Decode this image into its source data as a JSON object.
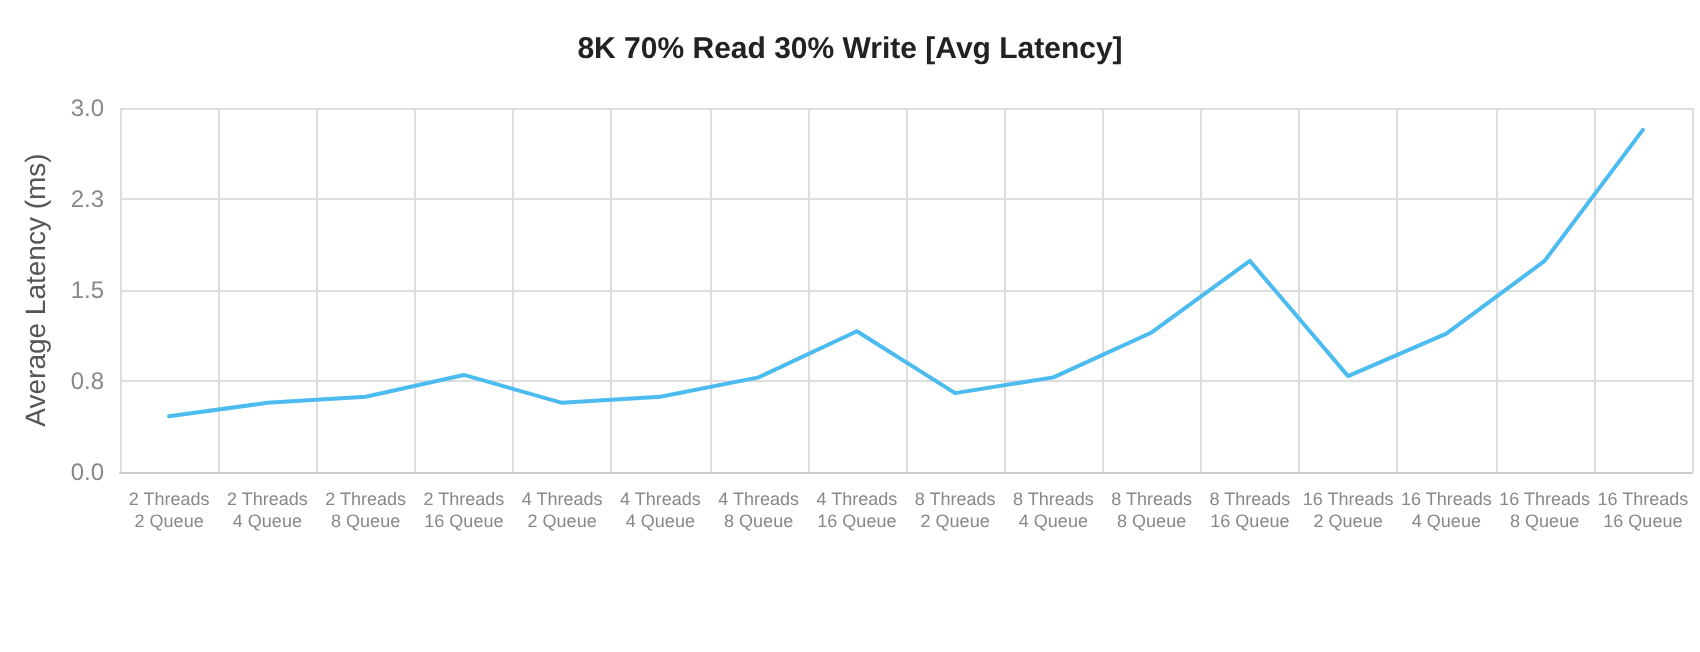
{
  "chart_data": {
    "type": "line",
    "title": "8K 70% Read 30% Write [Avg Latency]",
    "ylabel": "Average Latency (ms)",
    "categories": [
      "2 Threads\n2 Queue",
      "2 Threads\n4 Queue",
      "2 Threads\n8 Queue",
      "2 Threads\n16 Queue",
      "4 Threads\n2 Queue",
      "4 Threads\n4 Queue",
      "4 Threads\n8 Queue",
      "4 Threads\n16 Queue",
      "8 Threads\n2 Queue",
      "8 Threads\n4 Queue",
      "8 Threads\n8 Queue",
      "8 Threads\n16 Queue",
      "16 Threads\n2 Queue",
      "16 Threads\n4 Queue",
      "16 Threads\n8 Queue",
      "16 Threads\n16 Queue"
    ],
    "series": [
      {
        "color": "#4cbcf0",
        "values": [
          0.46,
          0.57,
          0.62,
          0.8,
          0.57,
          0.62,
          0.78,
          1.16,
          0.65,
          0.78,
          1.15,
          1.74,
          0.79,
          1.14,
          1.74,
          2.82
        ]
      }
    ],
    "ylim": [
      0,
      3
    ],
    "yticks": [
      {
        "value": 0,
        "label": "0.0"
      },
      {
        "value": 0.75,
        "label": "0.8"
      },
      {
        "value": 1.5,
        "label": "1.5"
      },
      {
        "value": 2.25,
        "label": "2.3"
      },
      {
        "value": 3,
        "label": "3.0"
      }
    ],
    "grid": true,
    "marker": "none",
    "line_style": "solid"
  }
}
